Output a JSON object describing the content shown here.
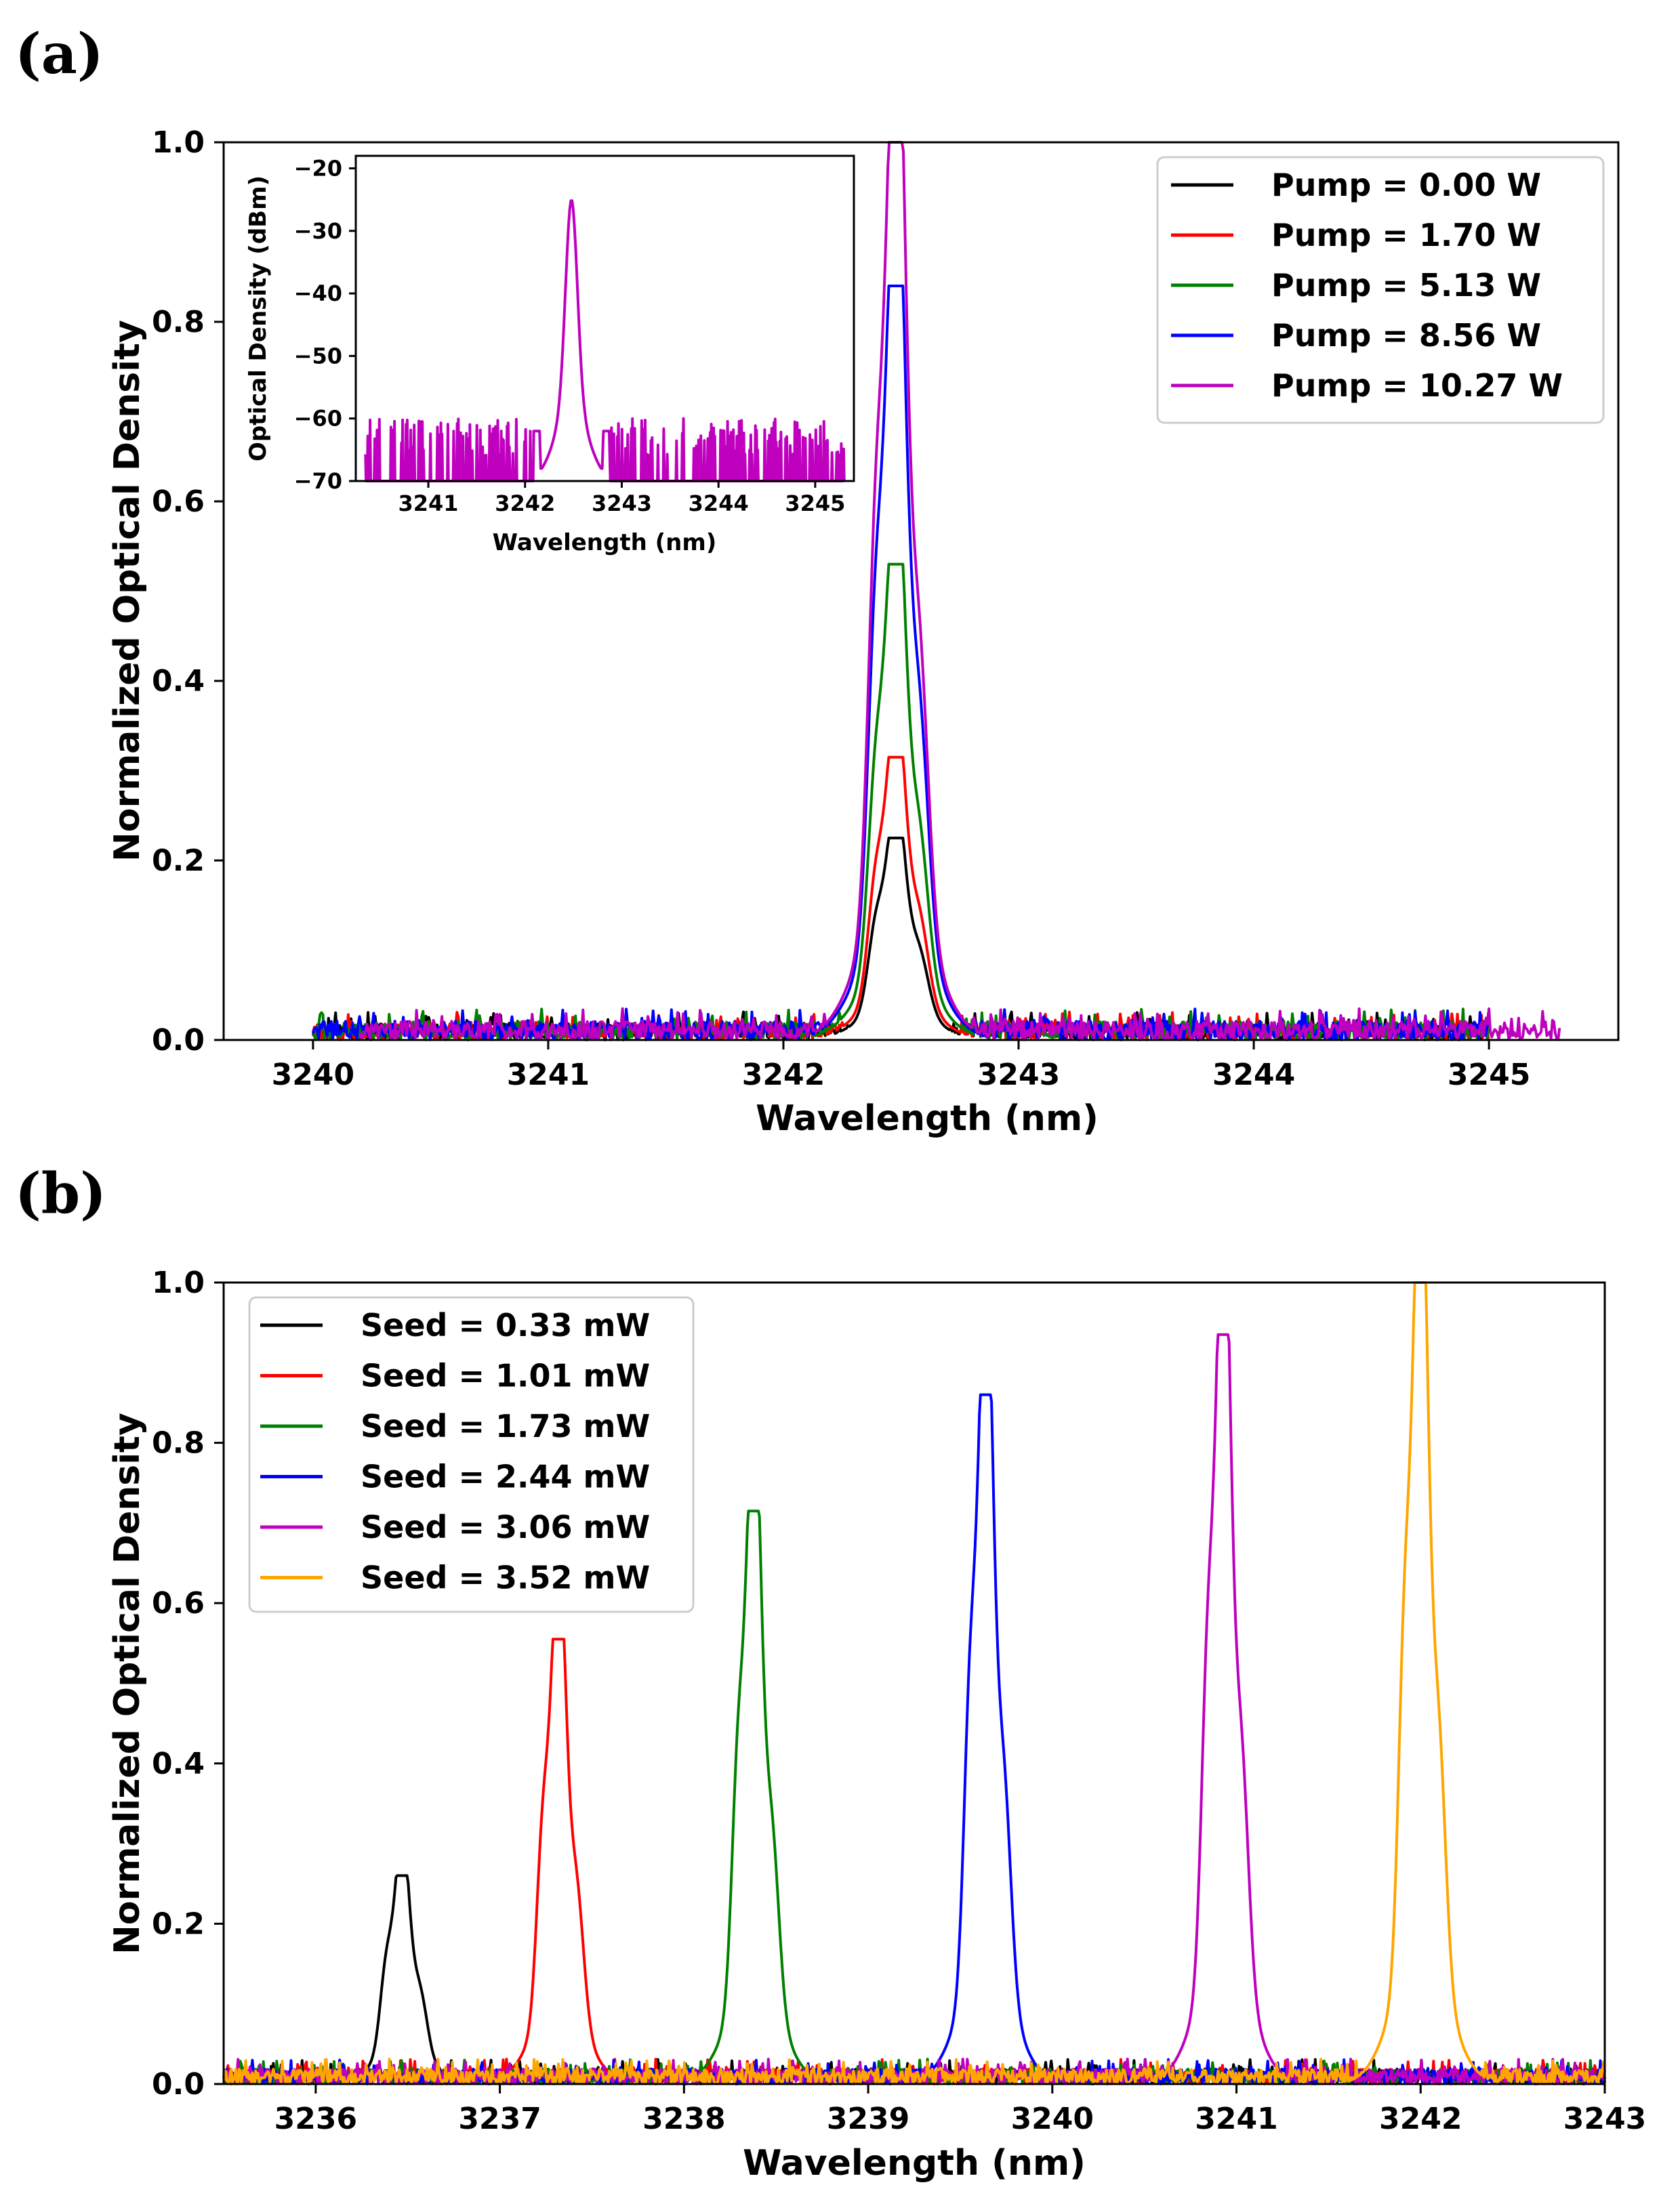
{
  "panels": {
    "a": {
      "label": "(a)"
    },
    "b": {
      "label": "(b)"
    }
  },
  "chart_data": [
    {
      "id": "a",
      "type": "line",
      "title": "",
      "xlabel": "Wavelength (nm)",
      "ylabel": "Normalized Optical Density",
      "xlim": [
        3239.62,
        3245.55
      ],
      "ylim": [
        0,
        1.0
      ],
      "xticks": [
        "3240",
        "3241",
        "3242",
        "3243",
        "3244",
        "3245"
      ],
      "xtick_values": [
        3240,
        3241,
        3242,
        3243,
        3244,
        3245
      ],
      "yticks": [
        "0.0",
        "0.2",
        "0.4",
        "0.6",
        "0.8",
        "1.0"
      ],
      "ytick_values": [
        0,
        0.2,
        0.4,
        0.6,
        0.8,
        1.0
      ],
      "legend_position": "top-right",
      "series": [
        {
          "name": "Pump = 0.00 W",
          "color": "#000000",
          "center": 3242.48,
          "peak": 0.225,
          "noise": 0.025,
          "range": [
            3240.0,
            3245.0
          ]
        },
        {
          "name": "Pump = 1.70 W",
          "color": "#ff0000",
          "center": 3242.48,
          "peak": 0.315,
          "noise": 0.025,
          "range": [
            3240.0,
            3245.0
          ]
        },
        {
          "name": "Pump = 5.13 W",
          "color": "#008000",
          "center": 3242.48,
          "peak": 0.53,
          "noise": 0.028,
          "range": [
            3240.0,
            3245.0
          ]
        },
        {
          "name": "Pump = 8.56 W",
          "color": "#0000ff",
          "center": 3242.48,
          "peak": 0.84,
          "noise": 0.028,
          "range": [
            3240.0,
            3245.0
          ]
        },
        {
          "name": "Pump = 10.27 W",
          "color": "#bf00bf",
          "center": 3242.48,
          "peak": 1.0,
          "noise": 0.028,
          "range": [
            3240.2,
            3245.3
          ]
        }
      ],
      "inset": {
        "type": "line",
        "xlabel": "Wavelength (nm)",
        "ylabel": "Optical Density (dBm)",
        "xlim": [
          3240.25,
          3245.4
        ],
        "ylim": [
          -70,
          -18
        ],
        "xticks": [
          "3241",
          "3242",
          "3243",
          "3244",
          "3245"
        ],
        "xtick_values": [
          3241,
          3242,
          3243,
          3244,
          3245
        ],
        "yticks": [
          "−70",
          "−60",
          "−50",
          "−40",
          "−30",
          "−20"
        ],
        "ytick_values": [
          -70,
          -60,
          -50,
          -40,
          -30,
          -20
        ],
        "series": [
          {
            "name": "Pump = 10.27 W",
            "color": "#bf00bf",
            "center": 3242.48,
            "peak_dbm": -25,
            "floor_dbm": -70,
            "noise_top_dbm": -60,
            "range": [
              3240.35,
              3245.3
            ]
          }
        ]
      }
    },
    {
      "id": "b",
      "type": "line",
      "title": "",
      "xlabel": "Wavelength (nm)",
      "ylabel": "Normalized Optical Density",
      "xlim": [
        3235.5,
        3243.0
      ],
      "ylim": [
        0,
        1.0
      ],
      "xticks": [
        "3236",
        "3237",
        "3238",
        "3239",
        "3240",
        "3241",
        "3242",
        "3243"
      ],
      "xtick_values": [
        3236,
        3237,
        3238,
        3239,
        3240,
        3241,
        3242,
        3243
      ],
      "yticks": [
        "0.0",
        "0.2",
        "0.4",
        "0.6",
        "0.8",
        "1.0"
      ],
      "ytick_values": [
        0,
        0.2,
        0.4,
        0.6,
        0.8,
        1.0
      ],
      "legend_position": "top-left",
      "series": [
        {
          "name": "Seed = 0.33 mW",
          "color": "#000000",
          "center": 3236.47,
          "peak": 0.26,
          "noise": 0.025,
          "range": [
            3235.5,
            3243.0
          ]
        },
        {
          "name": "Seed = 1.01 mW",
          "color": "#ff0000",
          "center": 3237.32,
          "peak": 0.555,
          "noise": 0.025,
          "range": [
            3235.5,
            3243.0
          ]
        },
        {
          "name": "Seed = 1.73 mW",
          "color": "#008000",
          "center": 3238.38,
          "peak": 0.715,
          "noise": 0.025,
          "range": [
            3235.5,
            3243.0
          ]
        },
        {
          "name": "Seed = 2.44 mW",
          "color": "#0000ff",
          "center": 3239.64,
          "peak": 0.86,
          "noise": 0.025,
          "range": [
            3235.5,
            3243.0
          ]
        },
        {
          "name": "Seed = 3.06 mW",
          "color": "#bf00bf",
          "center": 3240.93,
          "peak": 0.935,
          "noise": 0.025,
          "range": [
            3235.5,
            3243.0
          ]
        },
        {
          "name": "Seed = 3.52 mW",
          "color": "#ffa500",
          "center": 3242.0,
          "peak": 1.0,
          "noise": 0.025,
          "range": [
            3235.5,
            3243.0
          ]
        }
      ]
    }
  ]
}
